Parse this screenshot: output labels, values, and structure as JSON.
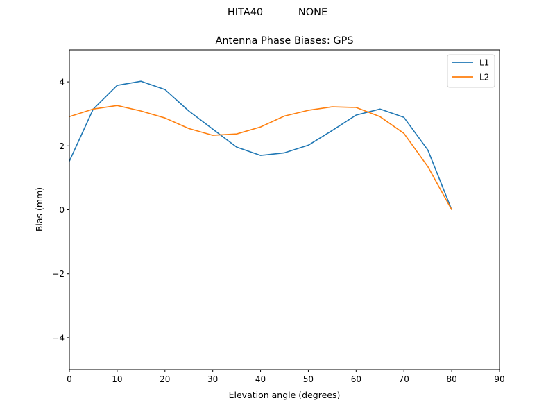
{
  "figure": {
    "suptitle": "HITA40           NONE"
  },
  "chart_data": {
    "type": "line",
    "title": "Antenna Phase Biases: GPS",
    "xlabel": "Elevation angle (degrees)",
    "ylabel": "Bias (mm)",
    "xlim": [
      0,
      90
    ],
    "ylim": [
      -5,
      5
    ],
    "xticks": [
      0,
      10,
      20,
      30,
      40,
      50,
      60,
      70,
      80,
      90
    ],
    "yticks": [
      -4,
      -2,
      0,
      2,
      4
    ],
    "ytick_labels": [
      "−4",
      "−2",
      "0",
      "2",
      "4"
    ],
    "grid": false,
    "legend_position": "upper right",
    "x": [
      0,
      5,
      10,
      15,
      20,
      25,
      30,
      35,
      40,
      45,
      50,
      55,
      60,
      65,
      70,
      75,
      80
    ],
    "series": [
      {
        "name": "L1",
        "color": "#1f77b4",
        "values": [
          1.52,
          3.15,
          3.89,
          4.02,
          3.76,
          3.09,
          2.52,
          1.96,
          1.7,
          1.78,
          2.02,
          2.48,
          2.96,
          3.15,
          2.89,
          1.87,
          0.0
        ]
      },
      {
        "name": "L2",
        "color": "#ff7f0e",
        "values": [
          2.91,
          3.15,
          3.26,
          3.09,
          2.87,
          2.54,
          2.33,
          2.37,
          2.59,
          2.93,
          3.11,
          3.22,
          3.2,
          2.91,
          2.39,
          1.35,
          0.0
        ]
      }
    ]
  }
}
